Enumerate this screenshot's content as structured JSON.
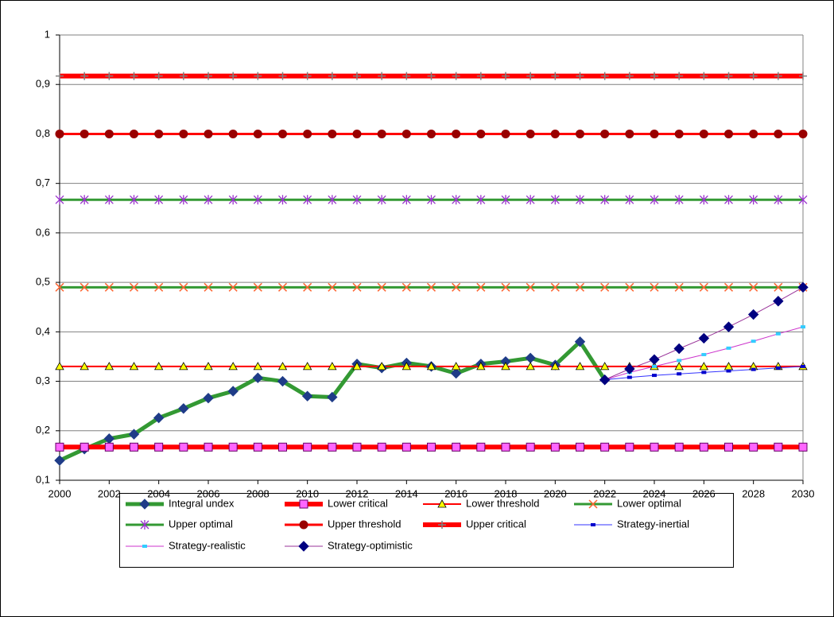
{
  "chart_data": {
    "type": "line",
    "x": [
      2000,
      2001,
      2002,
      2003,
      2004,
      2005,
      2006,
      2007,
      2008,
      2009,
      2010,
      2011,
      2012,
      2013,
      2014,
      2015,
      2016,
      2017,
      2018,
      2019,
      2020,
      2021,
      2022,
      2023,
      2024,
      2025,
      2026,
      2027,
      2028,
      2029,
      2030
    ],
    "xlim": [
      2000,
      2030
    ],
    "xticks": [
      2000,
      2002,
      2004,
      2006,
      2008,
      2010,
      2012,
      2014,
      2016,
      2018,
      2020,
      2022,
      2024,
      2026,
      2028,
      2030
    ],
    "ylim": [
      0.1,
      1
    ],
    "yticks": [
      {
        "value": 0.1,
        "label": "0,1"
      },
      {
        "value": 0.2,
        "label": "0,2"
      },
      {
        "value": 0.3,
        "label": "0,3"
      },
      {
        "value": 0.4,
        "label": "0,4"
      },
      {
        "value": 0.5,
        "label": "0,5"
      },
      {
        "value": 0.6,
        "label": "0,6"
      },
      {
        "value": 0.7,
        "label": "0,7"
      },
      {
        "value": 0.8,
        "label": "0,8"
      },
      {
        "value": 0.9,
        "label": "0,9"
      },
      1
    ],
    "grid": true,
    "legend": "bottom",
    "series": [
      {
        "name": "Integral undex",
        "color": "#339933",
        "marker": "diamond",
        "marker_color": "#1f3c88",
        "line_width": 5,
        "values": [
          0.14,
          0.163,
          0.184,
          0.193,
          0.226,
          0.245,
          0.266,
          0.28,
          0.307,
          0.3,
          0.27,
          0.268,
          0.335,
          0.327,
          0.337,
          0.33,
          0.316,
          0.335,
          0.34,
          0.347,
          0.333,
          0.38,
          0.303,
          null,
          null,
          null,
          null,
          null,
          null,
          null,
          null
        ]
      },
      {
        "name": "Lower critical",
        "color": "#ff0000",
        "marker": "square",
        "marker_color": "#ff66ff",
        "line_width": 6,
        "values": [
          0.167,
          0.167,
          0.167,
          0.167,
          0.167,
          0.167,
          0.167,
          0.167,
          0.167,
          0.167,
          0.167,
          0.167,
          0.167,
          0.167,
          0.167,
          0.167,
          0.167,
          0.167,
          0.167,
          0.167,
          0.167,
          0.167,
          0.167,
          0.167,
          0.167,
          0.167,
          0.167,
          0.167,
          0.167,
          0.167,
          0.167
        ]
      },
      {
        "name": "Lower threshold",
        "color": "#ff0000",
        "marker": "triangle",
        "marker_color": "#ffff00",
        "line_width": 2,
        "values": [
          0.33,
          0.33,
          0.33,
          0.33,
          0.33,
          0.33,
          0.33,
          0.33,
          0.33,
          0.33,
          0.33,
          0.33,
          0.33,
          0.33,
          0.33,
          0.33,
          0.33,
          0.33,
          0.33,
          0.33,
          0.33,
          0.33,
          0.33,
          0.33,
          0.33,
          0.33,
          0.33,
          0.33,
          0.33,
          0.33,
          0.33
        ]
      },
      {
        "name": "Lower optimal",
        "color": "#339933",
        "marker": "x",
        "marker_color": "#ff6633",
        "line_width": 3,
        "values": [
          0.49,
          0.49,
          0.49,
          0.49,
          0.49,
          0.49,
          0.49,
          0.49,
          0.49,
          0.49,
          0.49,
          0.49,
          0.49,
          0.49,
          0.49,
          0.49,
          0.49,
          0.49,
          0.49,
          0.49,
          0.49,
          0.49,
          0.49,
          0.49,
          0.49,
          0.49,
          0.49,
          0.49,
          0.49,
          0.49,
          0.49
        ]
      },
      {
        "name": "Upper optimal",
        "color": "#339933",
        "marker": "star",
        "marker_color": "#9933cc",
        "line_width": 3,
        "values": [
          0.667,
          0.667,
          0.667,
          0.667,
          0.667,
          0.667,
          0.667,
          0.667,
          0.667,
          0.667,
          0.667,
          0.667,
          0.667,
          0.667,
          0.667,
          0.667,
          0.667,
          0.667,
          0.667,
          0.667,
          0.667,
          0.667,
          0.667,
          0.667,
          0.667,
          0.667,
          0.667,
          0.667,
          0.667,
          0.667,
          0.667
        ]
      },
      {
        "name": "Upper threshold",
        "color": "#ff0000",
        "marker": "circle",
        "marker_color": "#990000",
        "line_width": 3,
        "values": [
          0.8,
          0.8,
          0.8,
          0.8,
          0.8,
          0.8,
          0.8,
          0.8,
          0.8,
          0.8,
          0.8,
          0.8,
          0.8,
          0.8,
          0.8,
          0.8,
          0.8,
          0.8,
          0.8,
          0.8,
          0.8,
          0.8,
          0.8,
          0.8,
          0.8,
          0.8,
          0.8,
          0.8,
          0.8,
          0.8,
          0.8
        ]
      },
      {
        "name": "Upper critical",
        "color": "#ff0000",
        "marker": "plus",
        "marker_color": "#808080",
        "line_width": 6,
        "values": [
          0.917,
          0.917,
          0.917,
          0.917,
          0.917,
          0.917,
          0.917,
          0.917,
          0.917,
          0.917,
          0.917,
          0.917,
          0.917,
          0.917,
          0.917,
          0.917,
          0.917,
          0.917,
          0.917,
          0.917,
          0.917,
          0.917,
          0.917,
          0.917,
          0.917,
          0.917,
          0.917,
          0.917,
          0.917,
          0.917,
          0.917
        ]
      },
      {
        "name": "Strategy-inertial",
        "color": "#3333ff",
        "marker": "dash",
        "marker_color": "#0000cc",
        "line_width": 1,
        "values": [
          null,
          null,
          null,
          null,
          null,
          null,
          null,
          null,
          null,
          null,
          null,
          null,
          null,
          null,
          null,
          null,
          null,
          null,
          null,
          null,
          null,
          null,
          0.303,
          0.308,
          0.312,
          0.315,
          0.318,
          0.321,
          0.324,
          0.327,
          0.33
        ]
      },
      {
        "name": "Strategy-realistic",
        "color": "#cc33cc",
        "marker": "dash",
        "marker_color": "#33ccff",
        "line_width": 1,
        "values": [
          null,
          null,
          null,
          null,
          null,
          null,
          null,
          null,
          null,
          null,
          null,
          null,
          null,
          null,
          null,
          null,
          null,
          null,
          null,
          null,
          null,
          null,
          0.303,
          0.318,
          0.33,
          0.342,
          0.354,
          0.367,
          0.381,
          0.396,
          0.41
        ]
      },
      {
        "name": "Strategy-optimistic",
        "color": "#993399",
        "marker": "diamond",
        "marker_color": "#000080",
        "line_width": 1,
        "values": [
          null,
          null,
          null,
          null,
          null,
          null,
          null,
          null,
          null,
          null,
          null,
          null,
          null,
          null,
          null,
          null,
          null,
          null,
          null,
          null,
          null,
          null,
          0.303,
          0.325,
          0.344,
          0.366,
          0.387,
          0.41,
          0.435,
          0.462,
          0.49
        ]
      }
    ]
  }
}
